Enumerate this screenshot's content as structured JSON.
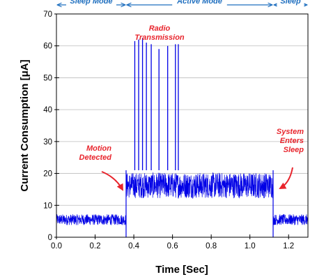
{
  "chart_data": {
    "type": "line",
    "xlabel": "Time [Sec]",
    "ylabel": "Current Consumption [μA]",
    "xlim": [
      0.0,
      1.3
    ],
    "ylim": [
      0,
      70
    ],
    "xticks": [
      0.0,
      0.2,
      0.4,
      0.6,
      0.8,
      1.0,
      1.2
    ],
    "xtick_labels": [
      "0.0",
      "0.2",
      "0.4",
      "0.6",
      "0.8",
      "1.0",
      "1.2"
    ],
    "yticks": [
      0,
      10,
      20,
      30,
      40,
      50,
      60,
      70
    ],
    "ytick_labels": [
      "0",
      "10",
      "20",
      "30",
      "40",
      "50",
      "60",
      "70"
    ],
    "grid": "horizontal",
    "series_color": "#0000e6",
    "segments": [
      {
        "x_start": 0.0,
        "x_end": 0.36,
        "y_low": 3.5,
        "y_high": 7.5
      },
      {
        "x_start": 0.36,
        "x_end": 1.12,
        "y_low": 11.5,
        "y_high": 21.0
      },
      {
        "x_start": 1.12,
        "x_end": 1.3,
        "y_low": 3.5,
        "y_high": 7.5
      }
    ],
    "transition_levels": {
      "sleep_to_active_min": 0,
      "active_to_sleep_min": 0
    },
    "spikes": [
      {
        "x": 0.405,
        "y": 61.5
      },
      {
        "x": 0.425,
        "y": 62.0
      },
      {
        "x": 0.445,
        "y": 62.5
      },
      {
        "x": 0.465,
        "y": 61.0
      },
      {
        "x": 0.49,
        "y": 60.5
      },
      {
        "x": 0.53,
        "y": 59.0
      },
      {
        "x": 0.575,
        "y": 60.0
      },
      {
        "x": 0.615,
        "y": 60.5
      },
      {
        "x": 0.63,
        "y": 60.5
      }
    ],
    "modes": [
      {
        "label": "Sleep Mode",
        "x_start": 0.0,
        "x_end": 0.36
      },
      {
        "label": "Active Mode",
        "x_start": 0.36,
        "x_end": 1.12
      },
      {
        "label": "Sleep",
        "x_start": 1.12,
        "x_end": 1.3
      }
    ],
    "mode_color": "#1f6fbf",
    "annotations": [
      {
        "lines": [
          "Radio",
          "Transmission"
        ]
      },
      {
        "lines": [
          "Motion",
          "Detected"
        ]
      },
      {
        "lines": [
          "System",
          "Enters",
          "Sleep"
        ]
      }
    ],
    "annotation_color": "#e8242c"
  }
}
